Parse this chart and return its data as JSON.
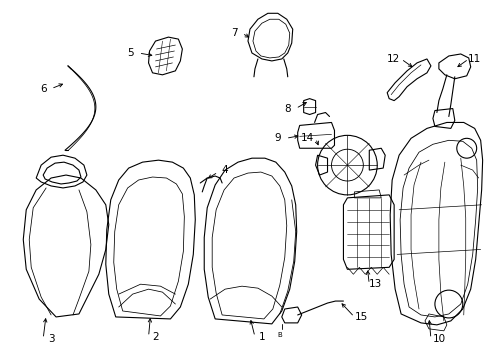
{
  "background_color": "#ffffff",
  "line_color": "#000000",
  "figure_width": 4.89,
  "figure_height": 3.6,
  "dpi": 100
}
